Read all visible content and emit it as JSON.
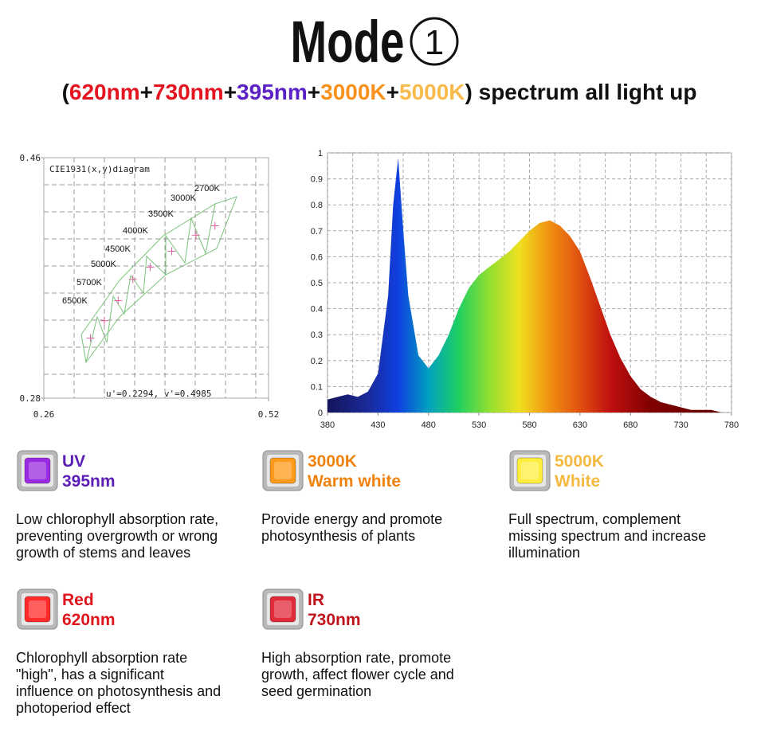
{
  "header": {
    "title": "Mode",
    "title_number": "1",
    "subtitle": [
      {
        "text": "(",
        "color": "#111111"
      },
      {
        "text": "620nm",
        "color": "#e3141f"
      },
      {
        "text": "+",
        "color": "#111111"
      },
      {
        "text": "730nm",
        "color": "#e3141f"
      },
      {
        "text": "+",
        "color": "#111111"
      },
      {
        "text": "395nm",
        "color": "#5b21c4"
      },
      {
        "text": "+",
        "color": "#111111"
      },
      {
        "text": "3000K",
        "color": "#f7921e"
      },
      {
        "text": "+",
        "color": "#111111"
      },
      {
        "text": "5000K",
        "color": "#f9ba4c"
      },
      {
        "text": ") spectrum all light up",
        "color": "#111111"
      }
    ]
  },
  "chart_data": [
    {
      "type": "scatter",
      "title": "CIE1931(x,y)diagram",
      "annotation": "u'=0.2294, v'=0.4985",
      "xlim": [
        0.26,
        0.52
      ],
      "ylim": [
        0.28,
        0.46
      ],
      "xticks": [
        0.26,
        0.52
      ],
      "yticks": [
        0.28,
        0.46
      ],
      "grid": true,
      "color": "#e060a0",
      "point_labels": [
        "6500K",
        "5700K",
        "5000K",
        "4500K",
        "4000K",
        "3500K",
        "3000K",
        "2700K"
      ],
      "x": [
        0.314,
        0.33,
        0.346,
        0.363,
        0.383,
        0.408,
        0.436,
        0.458
      ],
      "values": [
        0.325,
        0.338,
        0.353,
        0.369,
        0.378,
        0.39,
        0.402,
        0.409
      ]
    },
    {
      "type": "area",
      "x": [
        380,
        390,
        400,
        410,
        420,
        430,
        440,
        445,
        450,
        455,
        460,
        470,
        480,
        490,
        500,
        510,
        520,
        530,
        540,
        550,
        560,
        570,
        580,
        590,
        600,
        610,
        620,
        630,
        640,
        650,
        660,
        670,
        680,
        690,
        700,
        710,
        720,
        730,
        740,
        750,
        760,
        770,
        780
      ],
      "values": [
        0.05,
        0.06,
        0.07,
        0.06,
        0.08,
        0.15,
        0.45,
        0.8,
        0.98,
        0.7,
        0.45,
        0.22,
        0.17,
        0.22,
        0.3,
        0.4,
        0.48,
        0.53,
        0.56,
        0.59,
        0.62,
        0.66,
        0.7,
        0.73,
        0.74,
        0.72,
        0.68,
        0.62,
        0.52,
        0.41,
        0.3,
        0.21,
        0.14,
        0.09,
        0.06,
        0.04,
        0.03,
        0.02,
        0.01,
        0.01,
        0.01,
        0,
        0
      ],
      "xlim": [
        380,
        780
      ],
      "ylim": [
        0,
        1
      ],
      "xticks": [
        380,
        430,
        480,
        530,
        580,
        630,
        680,
        730,
        780
      ],
      "yticks": [
        0,
        0.1,
        0.2,
        0.3,
        0.4,
        0.5,
        0.6,
        0.7,
        0.8,
        0.9,
        1
      ],
      "grid": true
    }
  ],
  "features": [
    {
      "name": "UV",
      "detail": "395nm",
      "color": "#5b1fb8",
      "chip": "#9a2be0",
      "description": [
        "Low chlorophyll absorption rate,",
        "preventing overgrowth or wrong",
        "growth of stems and leaves"
      ]
    },
    {
      "name": "3000K",
      "detail": "Warm white",
      "color": "#f0830f",
      "chip": "#ff9a1a",
      "description": [
        "Provide energy and promote",
        "photosynthesis of plants"
      ]
    },
    {
      "name": "5000K",
      "detail": "White",
      "color": "#f5b942",
      "chip": "#ffee40",
      "description": [
        "Full spectrum, complement",
        "missing spectrum and increase",
        "illumination"
      ]
    },
    {
      "name": "Red",
      "detail": "620nm",
      "color": "#e0141c",
      "chip": "#ff2a2a",
      "description": [
        "Chlorophyll absorption rate",
        "\"high\", has a significant",
        "influence on photosynthesis and",
        "photoperiod effect"
      ]
    },
    {
      "name": "IR",
      "detail": "730nm",
      "color": "#c0141c",
      "chip": "#e02a3a",
      "description": [
        "High absorption rate, promote",
        "growth, affect flower cycle and",
        "seed germination"
      ]
    }
  ]
}
